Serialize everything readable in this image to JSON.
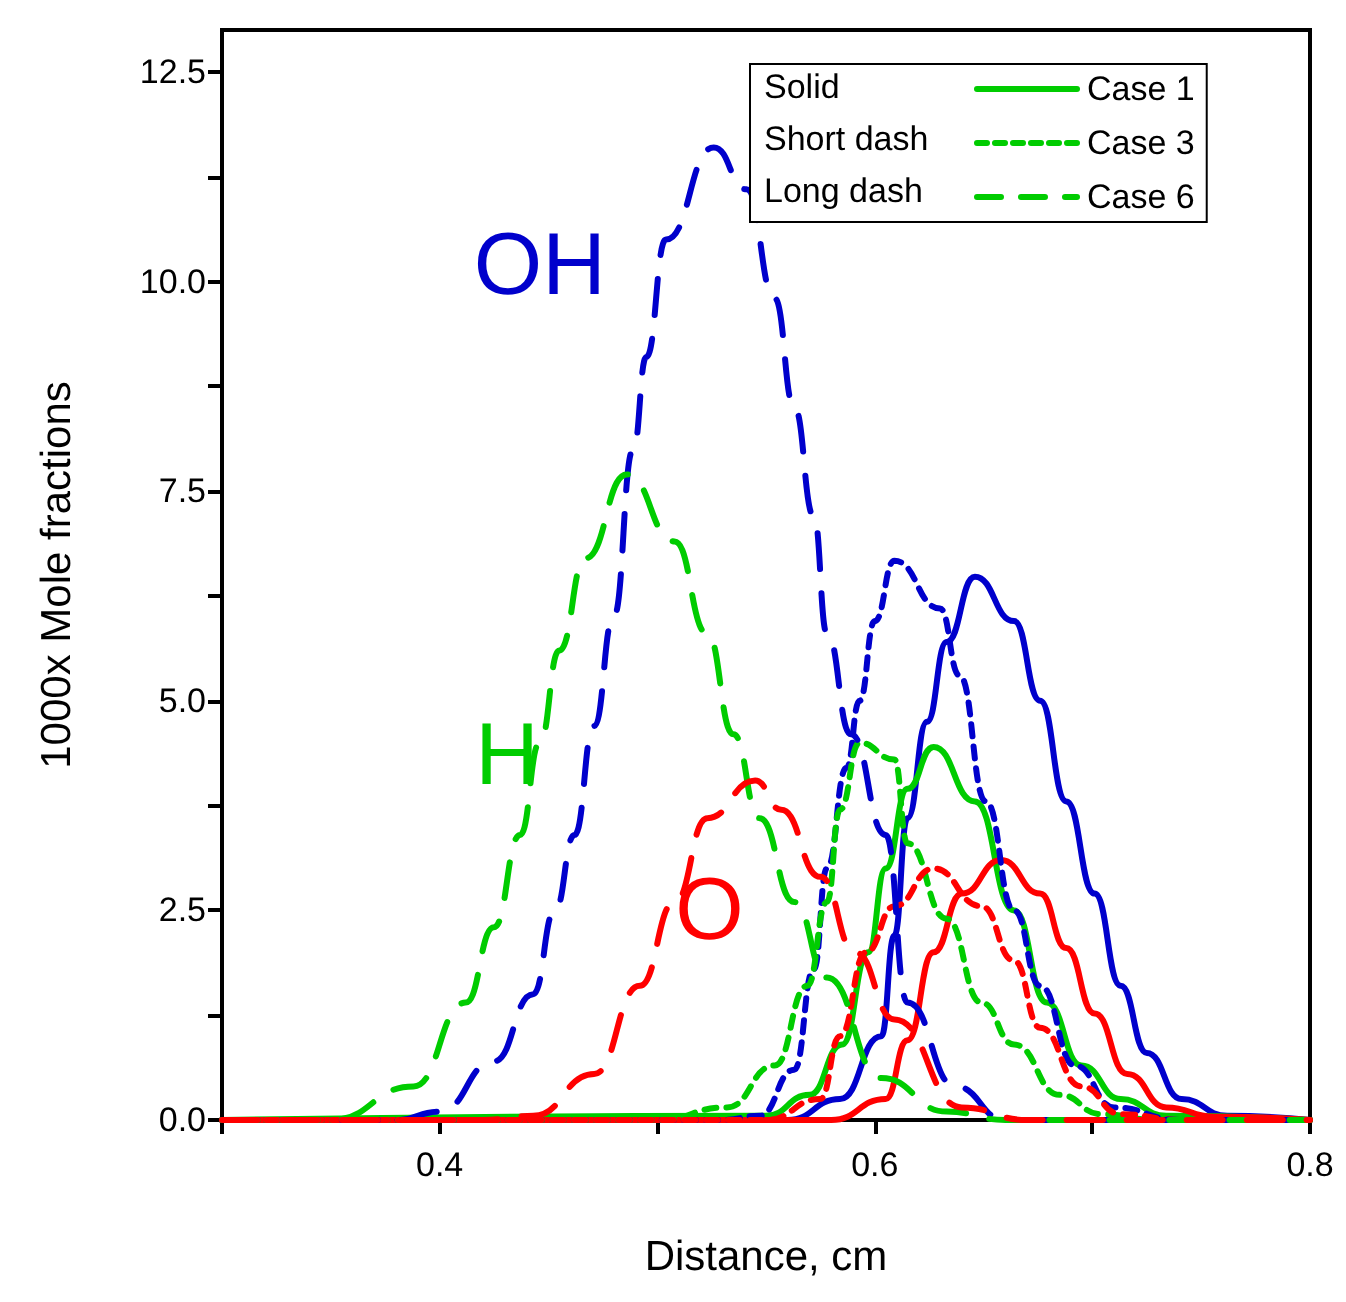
{
  "chart_data": {
    "type": "line",
    "xlabel": "Distance, cm",
    "ylabel": "1000x Mole fractions",
    "xlim": [
      0.3,
      0.8
    ],
    "xticks": [
      {
        "value": 0.3,
        "label": null
      },
      0.4,
      {
        "value": 0.5,
        "label": null
      },
      0.6,
      {
        "value": 0.7,
        "label": null
      },
      0.8
    ],
    "ylim": [
      0,
      13
    ],
    "yticks": [
      {
        "value": 0,
        "label": "0.0"
      },
      {
        "value": 1.25,
        "label": null
      },
      {
        "value": 2.5,
        "label": "2.5"
      },
      {
        "value": 3.75,
        "label": null
      },
      {
        "value": 5,
        "label": "5.0"
      },
      {
        "value": 6.25,
        "label": null
      },
      {
        "value": 7.5,
        "label": "7.5"
      },
      {
        "value": 8.75,
        "label": null
      },
      {
        "value": 10,
        "label": "10.0"
      },
      {
        "value": 11.25,
        "label": null
      },
      {
        "value": 12.5,
        "label": "12.5"
      }
    ],
    "grid": false,
    "legend": "top right",
    "marker": "none",
    "series": [
      {
        "color": "#0000cc",
        "line_style": "solid",
        "x": [
          0.3,
          0.56,
          0.584,
          0.603,
          0.609,
          0.615,
          0.624,
          0.633,
          0.646,
          0.664,
          0.676,
          0.688,
          0.701,
          0.713,
          0.725,
          0.741,
          0.762,
          0.8
        ],
        "values": [
          0,
          0,
          0.25,
          1.0,
          2.2,
          3.6,
          4.75,
          5.7,
          6.48,
          5.95,
          5.0,
          3.8,
          2.7,
          1.6,
          0.8,
          0.25,
          0.05,
          0
        ]
      },
      {
        "name": "Case 1",
        "color": "#00cc00",
        "line_style": "solid",
        "x": [
          0.3,
          0.55,
          0.57,
          0.585,
          0.597,
          0.605,
          0.615,
          0.627,
          0.646,
          0.664,
          0.679,
          0.695,
          0.713,
          0.734,
          0.8
        ],
        "values": [
          0,
          0.05,
          0.3,
          0.9,
          2.0,
          3.0,
          3.95,
          4.45,
          3.8,
          2.5,
          1.4,
          0.65,
          0.25,
          0.05,
          0
        ]
      },
      {
        "color": "#ff0000",
        "line_style": "solid",
        "x": [
          0.3,
          0.58,
          0.605,
          0.615,
          0.627,
          0.64,
          0.658,
          0.676,
          0.688,
          0.701,
          0.716,
          0.734,
          0.756,
          0.8
        ],
        "values": [
          0,
          0,
          0.25,
          0.95,
          2.0,
          2.7,
          3.1,
          2.7,
          2.05,
          1.27,
          0.55,
          0.15,
          0.04,
          0
        ]
      },
      {
        "color": "#0000cc",
        "line_style": "dotted",
        "x": [
          0.3,
          0.53,
          0.547,
          0.563,
          0.572,
          0.578,
          0.587,
          0.593,
          0.6,
          0.609,
          0.63,
          0.639,
          0.651,
          0.664,
          0.676,
          0.692,
          0.71,
          0.74,
          0.8
        ],
        "values": [
          0,
          0,
          0.05,
          0.6,
          1.8,
          3.0,
          4.2,
          5.0,
          5.95,
          6.67,
          6.1,
          5.3,
          3.8,
          2.5,
          1.6,
          0.65,
          0.15,
          0,
          0
        ]
      },
      {
        "name": "Case 3",
        "color": "#00cc00",
        "line_style": "dotted",
        "x": [
          0.3,
          0.5,
          0.532,
          0.554,
          0.569,
          0.578,
          0.584,
          0.593,
          0.609,
          0.615,
          0.633,
          0.649,
          0.664,
          0.685,
          0.704,
          0.73,
          0.8
        ],
        "values": [
          0,
          0,
          0.15,
          0.65,
          1.6,
          2.6,
          3.7,
          4.5,
          4.3,
          3.3,
          2.4,
          1.4,
          0.9,
          0.3,
          0.07,
          0,
          0
        ]
      },
      {
        "color": "#ff0000",
        "line_style": "dotted",
        "x": [
          0.3,
          0.55,
          0.575,
          0.584,
          0.596,
          0.609,
          0.627,
          0.649,
          0.664,
          0.676,
          0.695,
          0.713,
          0.74,
          0.8
        ],
        "values": [
          0,
          0,
          0.25,
          1.0,
          2.0,
          2.55,
          3.0,
          2.55,
          1.9,
          1.1,
          0.4,
          0.07,
          0,
          0
        ]
      },
      {
        "color": "#0000cc",
        "line_style": "dashed",
        "x": [
          0.3,
          0.38,
          0.4,
          0.425,
          0.443,
          0.453,
          0.462,
          0.471,
          0.48,
          0.489,
          0.495,
          0.504,
          0.526,
          0.541,
          0.554,
          0.563,
          0.572,
          0.578,
          0.589,
          0.605,
          0.615,
          0.637,
          0.66,
          0.8
        ],
        "values": [
          0,
          0,
          0.1,
          0.7,
          1.5,
          2.5,
          3.4,
          4.7,
          6.0,
          8.0,
          9.1,
          10.5,
          11.6,
          11.1,
          9.8,
          8.5,
          7.2,
          5.8,
          4.6,
          3.4,
          1.4,
          0.4,
          0,
          0
        ]
      },
      {
        "name": "Case 6",
        "color": "#00cc00",
        "line_style": "dashed",
        "x": [
          0.3,
          0.35,
          0.388,
          0.412,
          0.425,
          0.437,
          0.446,
          0.455,
          0.467,
          0.486,
          0.508,
          0.523,
          0.535,
          0.547,
          0.563,
          0.578,
          0.603,
          0.633,
          0.66,
          0.8
        ],
        "values": [
          0,
          0,
          0.4,
          1.4,
          2.3,
          3.4,
          4.5,
          5.6,
          6.7,
          7.7,
          6.9,
          5.8,
          4.6,
          3.6,
          2.6,
          1.7,
          0.5,
          0.1,
          0,
          0
        ]
      },
      {
        "color": "#ff0000",
        "line_style": "dashed",
        "x": [
          0.3,
          0.42,
          0.443,
          0.471,
          0.492,
          0.508,
          0.523,
          0.545,
          0.557,
          0.575,
          0.591,
          0.609,
          0.64,
          0.67,
          0.8
        ],
        "values": [
          0,
          0,
          0.05,
          0.55,
          1.6,
          2.6,
          3.6,
          4.05,
          3.7,
          2.9,
          2.0,
          1.2,
          0.15,
          0,
          0
        ]
      }
    ],
    "annotations": [
      "Solid",
      "Short dash",
      "Long dash",
      "OH",
      "H",
      "O"
    ]
  }
}
